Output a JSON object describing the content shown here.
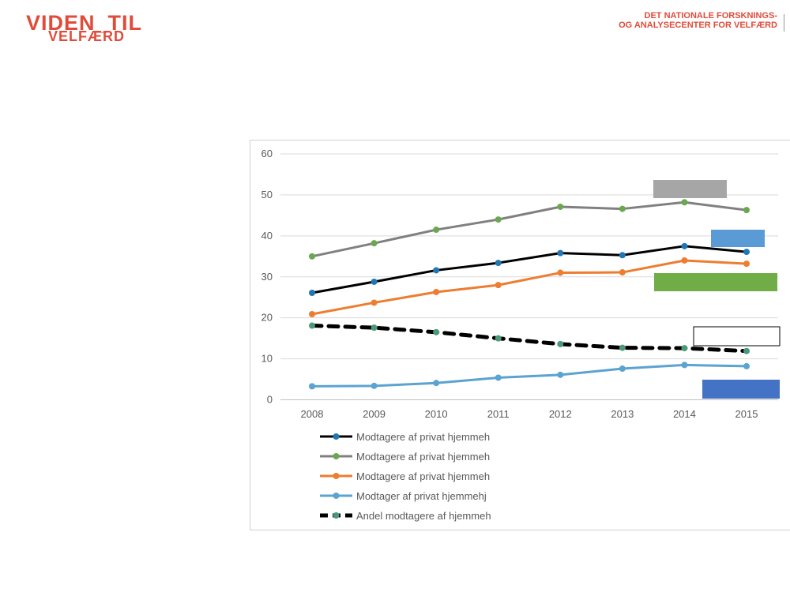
{
  "header": {
    "logo_line1": "VIDEN_TIL",
    "logo_line2": "VELFÆRD",
    "brand_line1": "DET NATIONALE FORSKNINGS-",
    "brand_line2": "OG ANALYSECENTER FOR VELFÆRD",
    "accent_color": "#e04b3a"
  },
  "chart_data": {
    "type": "line",
    "x": [
      2008,
      2009,
      2010,
      2011,
      2012,
      2013,
      2014,
      2015
    ],
    "ylim": [
      0,
      60
    ],
    "yticks": [
      0,
      10,
      20,
      30,
      40,
      50,
      60
    ],
    "grid": true,
    "legend_position": "bottom-left",
    "series": [
      {
        "name": "Modtagere af privat hjemmeh",
        "color": "#000000",
        "marker": "#1f77b4",
        "dash": false,
        "values": [
          26.1,
          28.8,
          31.6,
          33.4,
          35.8,
          35.3,
          37.5,
          36.1
        ]
      },
      {
        "name": "Modtagere af privat hjemmeh",
        "color": "#808080",
        "marker": "#6aa84f",
        "dash": false,
        "values": [
          35.0,
          38.2,
          41.5,
          44.0,
          47.1,
          46.6,
          48.2,
          46.3
        ]
      },
      {
        "name": "Modtagere af privat hjemmeh",
        "color": "#ed7d31",
        "marker": "#ed7d31",
        "dash": false,
        "values": [
          20.9,
          23.7,
          26.3,
          28.0,
          31.0,
          31.1,
          34.0,
          33.2
        ]
      },
      {
        "name": "Modtager af privat hjemmehj",
        "color": "#5ba3d0",
        "marker": "#5ba3d0",
        "dash": false,
        "values": [
          3.3,
          3.4,
          4.1,
          5.4,
          6.1,
          7.6,
          8.5,
          8.2
        ]
      },
      {
        "name": "Andel modtagere af hjemmeh",
        "color": "#000000",
        "marker": "#4a9a7a",
        "dash": true,
        "values": [
          18.1,
          17.6,
          16.5,
          15.0,
          13.6,
          12.7,
          12.6,
          11.9
        ]
      }
    ],
    "annotation_colors": [
      "#a6a6a6",
      "#5b9bd5",
      "#70ad47",
      "#ffffff",
      "#4472c4"
    ]
  }
}
